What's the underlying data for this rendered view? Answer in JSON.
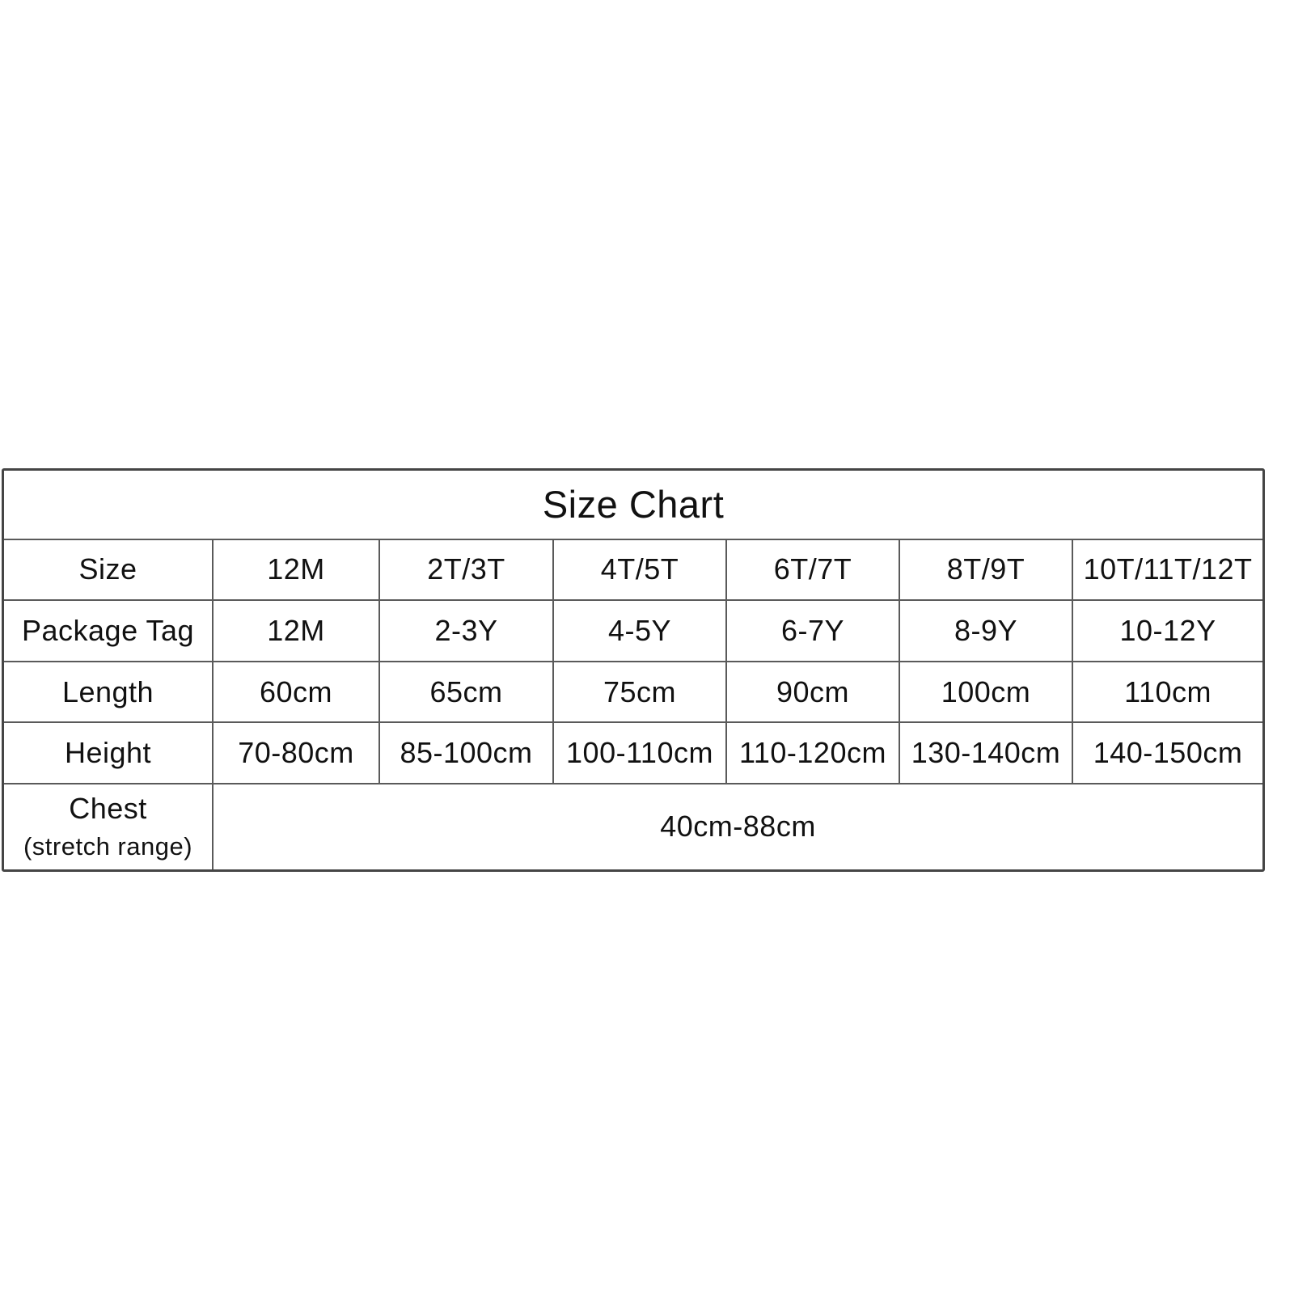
{
  "title": "Size Chart",
  "rows": [
    {
      "label": "Size",
      "values": [
        "12M",
        "2T/3T",
        "4T/5T",
        "6T/7T",
        "8T/9T",
        "10T/11T/12T"
      ]
    },
    {
      "label": "Package Tag",
      "values": [
        "12M",
        "2-3Y",
        "4-5Y",
        "6-7Y",
        "8-9Y",
        "10-12Y"
      ]
    },
    {
      "label": "Length",
      "values": [
        "60cm",
        "65cm",
        "75cm",
        "90cm",
        "100cm",
        "110cm"
      ]
    },
    {
      "label": "Height",
      "values": [
        "70-80cm",
        "85-100cm",
        "100-110cm",
        "110-120cm",
        "130-140cm",
        "140-150cm"
      ]
    }
  ],
  "chest": {
    "label": "Chest",
    "sublabel": "(stretch range)",
    "value": "40cm-88cm"
  }
}
